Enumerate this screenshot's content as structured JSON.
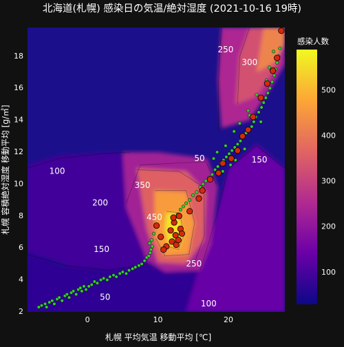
{
  "chart_data": {
    "type": "heatmap",
    "title": "北海道(札幌) 感染日の気温/絶対湿度 (2021-10-16 19時)",
    "xlabel": "札幌 平均気温 移動平均 [℃]",
    "ylabel": "札幌 容積絶対湿度 移動平均 [g/㎥]",
    "xlim": [
      -8.5,
      28
    ],
    "ylim": [
      2,
      19.8
    ],
    "x_ticks": [
      0,
      10,
      20
    ],
    "y_ticks": [
      2,
      4,
      6,
      8,
      10,
      12,
      14,
      16,
      18
    ],
    "grid": false,
    "colorbar": {
      "title": "感染人数",
      "min": 30,
      "max": 590,
      "ticks": [
        100,
        200,
        300,
        400,
        500
      ],
      "colors": [
        "#0d0887",
        "#6a00a8",
        "#b12a90",
        "#e16462",
        "#fca636",
        "#f0f921"
      ]
    },
    "contour_labels": [
      {
        "text": "250",
        "x": 19.6,
        "y": 18.4
      },
      {
        "text": "300",
        "x": 23.0,
        "y": 17.6
      },
      {
        "text": "100",
        "x": -4.3,
        "y": 10.8
      },
      {
        "text": "50",
        "x": 15.9,
        "y": 11.6
      },
      {
        "text": "150",
        "x": 24.4,
        "y": 11.5
      },
      {
        "text": "350",
        "x": 7.8,
        "y": 9.9
      },
      {
        "text": "200",
        "x": 1.8,
        "y": 8.8
      },
      {
        "text": "450",
        "x": 9.5,
        "y": 7.9
      },
      {
        "text": "150",
        "x": 2.0,
        "y": 5.9
      },
      {
        "text": "250",
        "x": 15.1,
        "y": 5.0
      },
      {
        "text": "50",
        "x": 2.5,
        "y": 2.9
      },
      {
        "text": "100",
        "x": 17.2,
        "y": 2.5
      }
    ],
    "series": [
      {
        "marker": "small-green",
        "color": "#32cd32",
        "points": [
          [
            -6.9,
            2.3
          ],
          [
            -6.5,
            2.4
          ],
          [
            -6.0,
            2.5
          ],
          [
            -5.8,
            2.3
          ],
          [
            -5.4,
            2.6
          ],
          [
            -5.0,
            2.7
          ],
          [
            -4.7,
            2.5
          ],
          [
            -4.3,
            2.8
          ],
          [
            -4.0,
            2.9
          ],
          [
            -3.6,
            2.7
          ],
          [
            -3.2,
            3.0
          ],
          [
            -2.9,
            3.1
          ],
          [
            -2.6,
            2.9
          ],
          [
            -2.3,
            3.2
          ],
          [
            -2.0,
            3.3
          ],
          [
            -1.6,
            3.1
          ],
          [
            -1.3,
            3.4
          ],
          [
            -1.0,
            3.5
          ],
          [
            -0.8,
            3.3
          ],
          [
            -0.5,
            3.6
          ],
          [
            -0.2,
            3.4
          ],
          [
            0.2,
            3.6
          ],
          [
            0.6,
            3.7
          ],
          [
            1.0,
            3.9
          ],
          [
            1.4,
            3.8
          ],
          [
            1.9,
            4.0
          ],
          [
            2.3,
            4.1
          ],
          [
            2.8,
            4.0
          ],
          [
            3.2,
            4.2
          ],
          [
            3.7,
            4.3
          ],
          [
            4.1,
            4.2
          ],
          [
            4.6,
            4.4
          ],
          [
            5.0,
            4.5
          ],
          [
            5.5,
            4.4
          ],
          [
            5.9,
            4.6
          ],
          [
            6.4,
            4.7
          ],
          [
            6.8,
            4.8
          ],
          [
            7.3,
            4.9
          ],
          [
            7.7,
            5.0
          ],
          [
            8.1,
            5.2
          ],
          [
            8.4,
            5.4
          ],
          [
            8.7,
            5.5
          ],
          [
            8.9,
            5.7
          ],
          [
            9.0,
            5.9
          ],
          [
            9.2,
            6.1
          ],
          [
            8.8,
            6.3
          ],
          [
            9.1,
            6.5
          ],
          [
            9.4,
            6.9
          ],
          [
            12.8,
            8.1
          ],
          [
            13.2,
            8.4
          ],
          [
            13.6,
            8.6
          ],
          [
            14.0,
            8.8
          ],
          [
            14.5,
            9.0
          ],
          [
            15.0,
            9.3
          ],
          [
            15.5,
            9.5
          ],
          [
            16.0,
            9.8
          ],
          [
            16.4,
            10.0
          ],
          [
            16.8,
            10.2
          ],
          [
            17.2,
            10.4
          ],
          [
            17.7,
            10.6
          ],
          [
            18.1,
            10.9
          ],
          [
            18.5,
            11.1
          ],
          [
            18.9,
            11.3
          ],
          [
            19.3,
            11.5
          ],
          [
            19.7,
            11.7
          ],
          [
            20.1,
            11.9
          ],
          [
            20.5,
            12.1
          ],
          [
            20.9,
            12.3
          ],
          [
            21.3,
            12.5
          ],
          [
            21.7,
            12.7
          ],
          [
            22.1,
            13.0
          ],
          [
            22.5,
            13.2
          ],
          [
            22.9,
            13.4
          ],
          [
            23.3,
            13.6
          ],
          [
            23.6,
            13.9
          ],
          [
            23.9,
            14.2
          ],
          [
            24.3,
            14.5
          ],
          [
            24.7,
            14.8
          ],
          [
            25.0,
            15.1
          ],
          [
            25.3,
            15.4
          ],
          [
            25.6,
            15.7
          ],
          [
            25.9,
            16.0
          ],
          [
            26.2,
            16.4
          ],
          [
            26.5,
            16.8
          ],
          [
            26.7,
            17.2
          ],
          [
            26.9,
            17.6
          ],
          [
            27.1,
            18.0
          ],
          [
            27.3,
            18.5
          ],
          [
            20.3,
            11.2
          ],
          [
            21.0,
            11.5
          ],
          [
            19.6,
            12.4
          ],
          [
            20.8,
            13.3
          ],
          [
            22.3,
            12.2
          ],
          [
            23.0,
            14.3
          ],
          [
            24.6,
            13.9
          ],
          [
            25.4,
            16.5
          ],
          [
            18.4,
            12.0
          ],
          [
            17.9,
            11.6
          ],
          [
            19.2,
            10.8
          ],
          [
            21.6,
            13.8
          ],
          [
            22.8,
            14.6
          ],
          [
            24.0,
            15.6
          ],
          [
            25.8,
            17.3
          ],
          [
            26.4,
            18.3
          ]
        ]
      },
      {
        "marker": "large-red",
        "color": "#d42a0c",
        "points": [
          [
            12.0,
            6.4
          ],
          [
            12.5,
            6.8
          ],
          [
            11.8,
            7.1
          ],
          [
            12.3,
            7.6
          ],
          [
            12.6,
            6.2
          ],
          [
            11.2,
            6.1
          ],
          [
            10.8,
            5.9
          ],
          [
            12.9,
            6.5
          ],
          [
            13.2,
            7.2
          ],
          [
            12.2,
            7.9
          ],
          [
            13.4,
            6.9
          ],
          [
            13.0,
            8.0
          ],
          [
            14.5,
            8.3
          ],
          [
            15.8,
            9.1
          ],
          [
            16.3,
            9.6
          ],
          [
            17.4,
            10.3
          ],
          [
            18.6,
            10.7
          ],
          [
            19.2,
            11.3
          ],
          [
            20.4,
            11.6
          ],
          [
            21.3,
            12.1
          ],
          [
            22.0,
            13.0
          ],
          [
            22.8,
            13.4
          ],
          [
            23.5,
            14.2
          ],
          [
            24.6,
            15.4
          ],
          [
            25.5,
            16.3
          ],
          [
            26.3,
            17.1
          ],
          [
            26.9,
            17.9
          ],
          [
            27.5,
            19.6
          ],
          [
            9.8,
            7.4
          ],
          [
            10.4,
            6.7
          ]
        ]
      }
    ]
  }
}
